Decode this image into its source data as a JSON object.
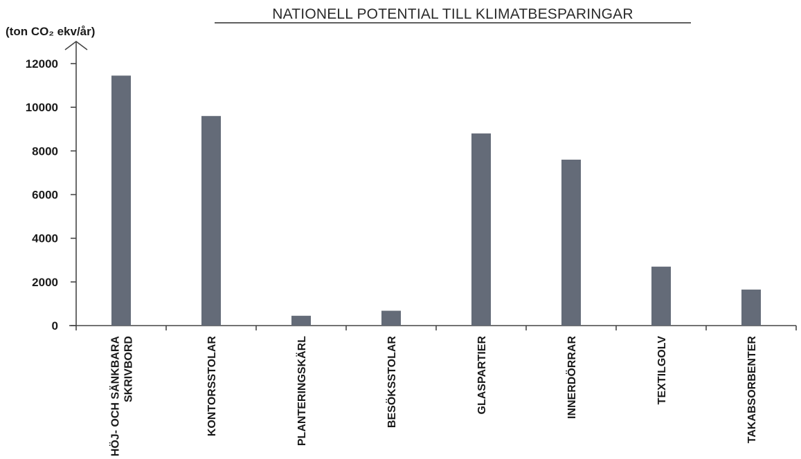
{
  "chart_data": {
    "type": "bar",
    "title": "NATIONELL POTENTIAL TILL KLIMATBESPARINGAR",
    "ylabel": "(ton CO₂ ekv/år)",
    "xlabel": "",
    "categories": [
      "HÖJ- OCH SÄNKBARA\nSKRIVBORD",
      "KONTORSSTOLAR",
      "PLANTERINGSKÄRL",
      "BESÖKSSTOLAR",
      "GLASPARTIER",
      "INNERDÖRRAR",
      "TEXTILGOLV",
      "TAKABSORBENTER"
    ],
    "values": [
      11450,
      9600,
      450,
      680,
      8800,
      7600,
      2700,
      1650
    ],
    "ylim": [
      0,
      12000
    ],
    "yticks": [
      "0",
      "2000",
      "4000",
      "6000",
      "8000",
      "10000",
      "12000"
    ],
    "bar_color": "#646b78",
    "grid": false,
    "legend": "none"
  }
}
